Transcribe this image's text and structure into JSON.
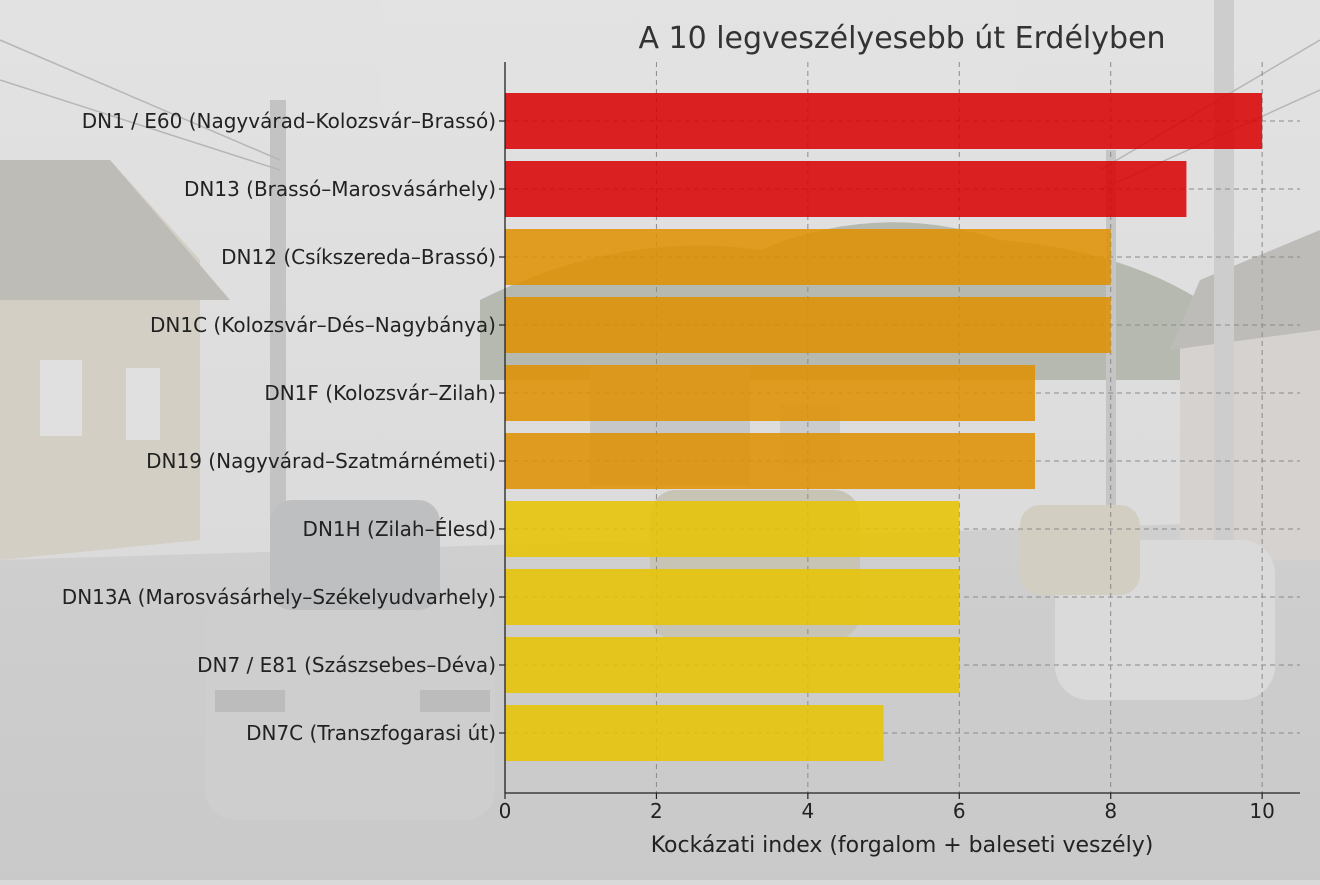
{
  "chart_data": {
    "type": "bar",
    "orientation": "horizontal",
    "title": "A 10 legveszélyesebb út Erdélyben",
    "xlabel": "Kockázati index (forgalom + baleseti veszély)",
    "ylabel": "",
    "xlim": [
      0,
      10.5
    ],
    "xticks": [
      0,
      2,
      4,
      6,
      8,
      10
    ],
    "grid": true,
    "categories": [
      "DN1 / E60 (Nagyvárad–Kolozsvár–Brassó)",
      "DN13 (Brassó–Marosvásárhely)",
      "DN12 (Csíkszereda–Brassó)",
      "DN1C (Kolozsvár–Dés–Nagybánya)",
      "DN1F (Kolozsvár–Zilah)",
      "DN19 (Nagyvárad–Szatmárnémeti)",
      "DN1H (Zilah–Élesd)",
      "DN13A (Marosvásárhely–Székelyudvarhely)",
      "DN7 / E81 (Szászsebes–Déva)",
      "DN7C (Transzfogarasi út)"
    ],
    "values": [
      10,
      9,
      8,
      8,
      7,
      7,
      6,
      6,
      6,
      5
    ],
    "bar_colors": [
      "#d90000",
      "#d90000",
      "#e09000",
      "#e09000",
      "#e09000",
      "#e09000",
      "#e6c400",
      "#e6c400",
      "#e6c400",
      "#e6c400"
    ]
  },
  "colors": {
    "text": "#222222",
    "title": "#333333",
    "axis": "#222222",
    "grid": "#8a8a8a"
  }
}
